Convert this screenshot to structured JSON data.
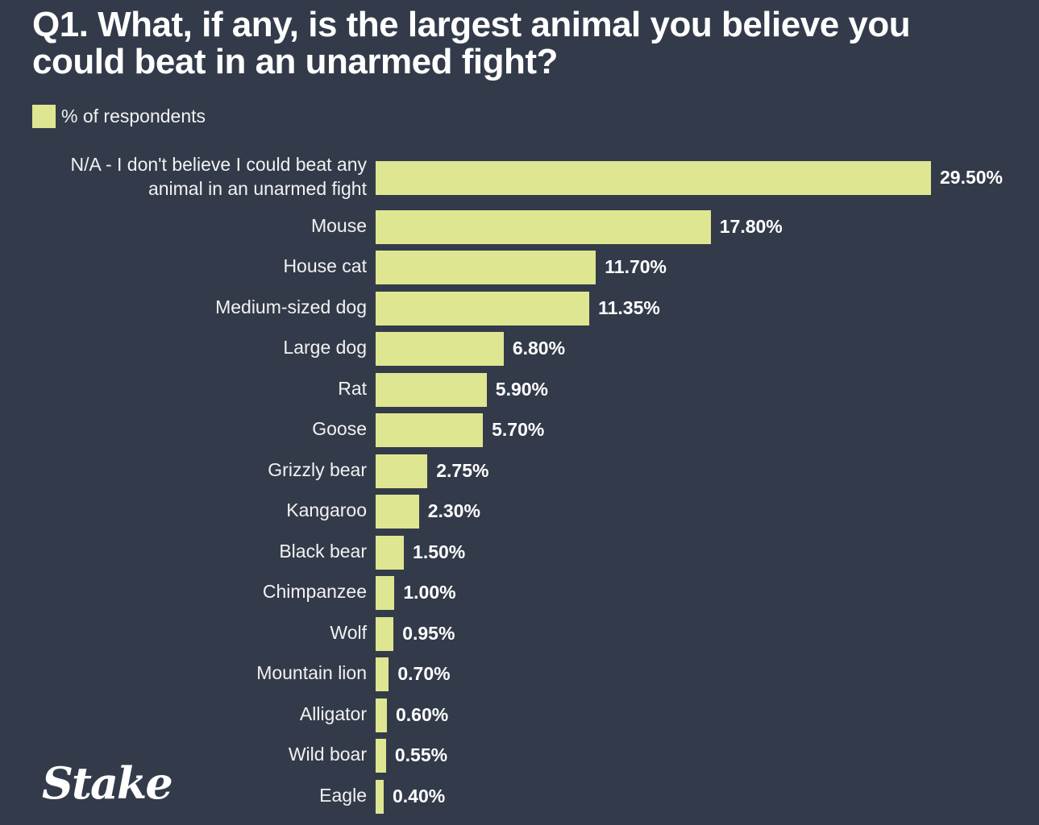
{
  "chart_data": {
    "type": "bar",
    "orientation": "horizontal",
    "title": "Q1. What, if any, is the largest animal you believe you could beat in an unarmed fight?",
    "legend": [
      "% of respondents"
    ],
    "legend_position": "top-left",
    "categories": [
      [
        "N/A - I don't believe I could beat any",
        "animal in an unarmed fight"
      ],
      [
        "Mouse"
      ],
      [
        "House cat"
      ],
      [
        "Medium-sized dog"
      ],
      [
        "Large dog"
      ],
      [
        "Rat"
      ],
      [
        "Goose"
      ],
      [
        "Grizzly bear"
      ],
      [
        "Kangaroo"
      ],
      [
        "Black bear"
      ],
      [
        "Chimpanzee"
      ],
      [
        "Wolf"
      ],
      [
        "Mountain lion"
      ],
      [
        "Alligator"
      ],
      [
        "Wild boar"
      ],
      [
        "Eagle"
      ]
    ],
    "values": [
      29.5,
      17.8,
      11.7,
      11.35,
      6.8,
      5.9,
      5.7,
      2.75,
      2.3,
      1.5,
      1.0,
      0.95,
      0.7,
      0.6,
      0.55,
      0.4
    ],
    "value_labels": [
      "29.50%",
      "17.80%",
      "11.70%",
      "11.35%",
      "6.80%",
      "5.90%",
      "5.70%",
      "2.75%",
      "2.30%",
      "1.50%",
      "1.00%",
      "0.95%",
      "0.70%",
      "0.60%",
      "0.55%",
      "0.40%"
    ],
    "bar_color": "#dfe692",
    "grid": false
  },
  "logo": "Stake"
}
